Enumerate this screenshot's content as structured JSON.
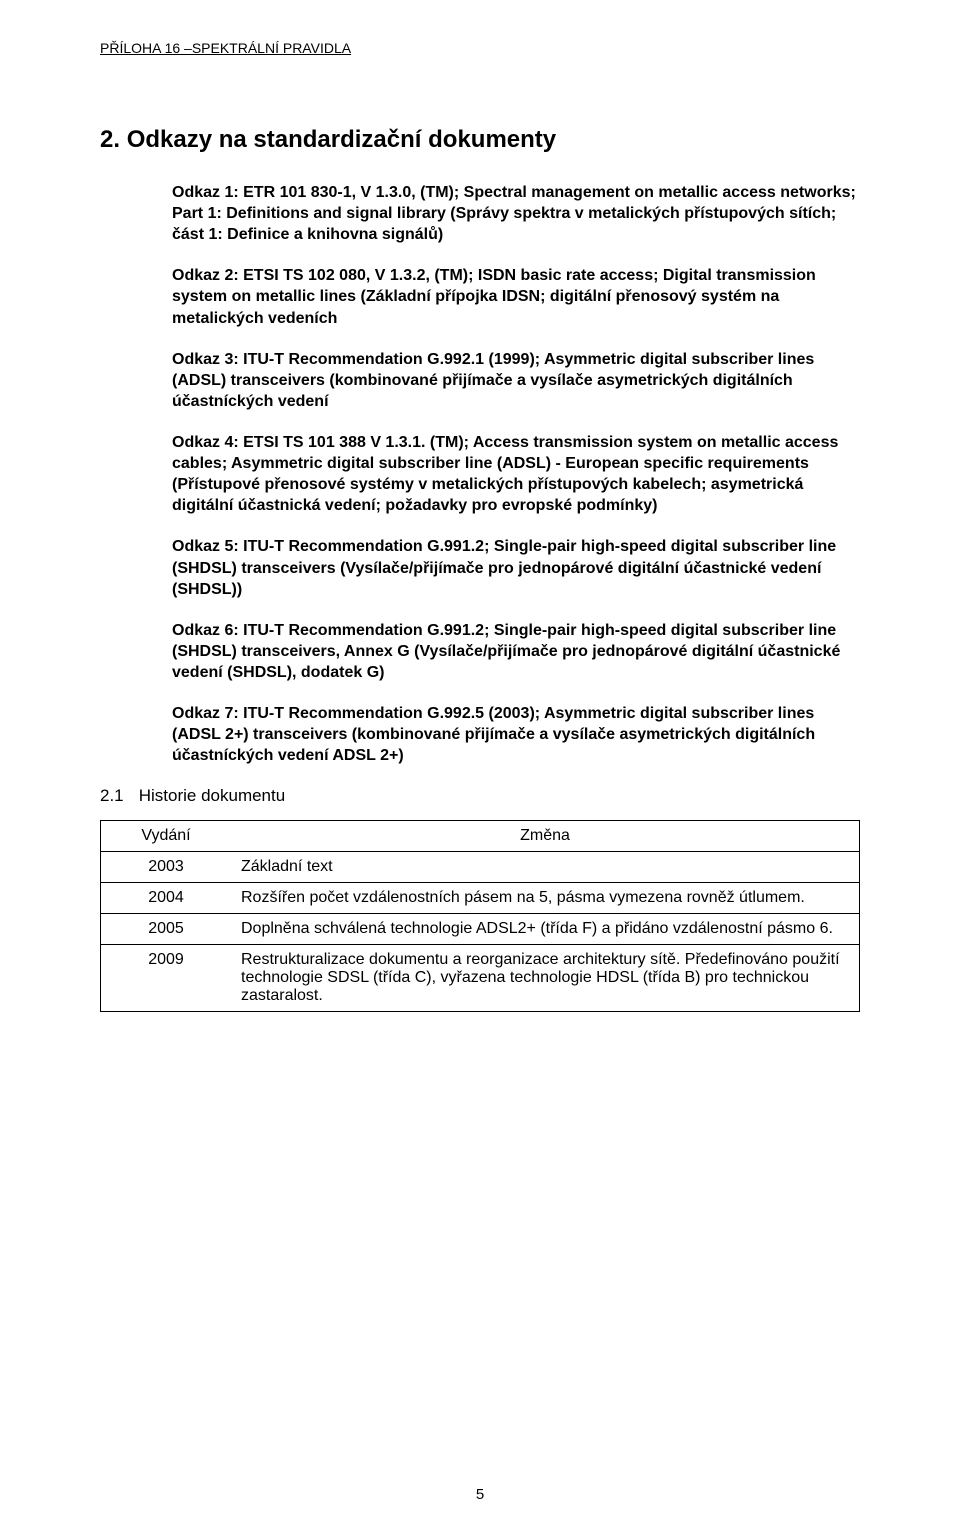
{
  "header": {
    "running": "PŘÍLOHA 16 –SPEKTRÁLNÍ PRAVIDLA"
  },
  "section": {
    "number": "2.",
    "title": "Odkazy na standardizační dokumenty"
  },
  "refs": {
    "r1": "Odkaz 1:  ETR 101 830-1, V 1.3.0, (TM); Spectral management on metallic access networks; Part 1: Definitions and signal library (Správy spektra v metalických přístupových sítích; část 1: Definice a knihovna signálů)",
    "r2": "Odkaz 2:  ETSI TS 102 080, V 1.3.2, (TM); ISDN basic rate access; Digital transmission system on metallic lines (Základní přípojka IDSN; digitální přenosový systém na metalických vedeních",
    "r3": "Odkaz 3:  ITU-T Recommendation G.992.1 (1999); Asymmetric digital subscriber lines (ADSL) transceivers (kombinované přijímače a vysílače asymetrických digitálních účastníckých vedení",
    "r4": "Odkaz 4:  ETSI TS 101 388 V 1.3.1. (TM); Access transmission system on metallic access cables; Asymmetric digital subscriber line (ADSL) - European specific requirements (Přístupové přenosové systémy v metalických přístupových kabelech; asymetrická digitální účastnická vedení; požadavky pro evropské podmínky)",
    "r5": "Odkaz 5:  ITU-T Recommendation G.991.2; Single-pair high-speed digital subscriber line (SHDSL) transceivers (Vysílače/přijímače pro jednopárové digitální účastnické vedení (SHDSL))",
    "r6": "Odkaz 6:  ITU-T Recommendation G.991.2; Single-pair high-speed digital subscriber line (SHDSL) transceivers, Annex G (Vysílače/přijímače pro jednopárové digitální účastnické vedení (SHDSL), dodatek G)",
    "r7": "Odkaz 7:  ITU-T Recommendation G.992.5 (2003); Asymmetric digital subscriber lines (ADSL 2+) transceivers (kombinované přijímače a vysílače asymetrických digitálních účastníckých vedení ADSL 2+)"
  },
  "subsection": {
    "number": "2.1",
    "title": "Historie dokumentu"
  },
  "table": {
    "head": {
      "c1": "Vydání",
      "c2": "Změna"
    },
    "rows": [
      {
        "year": "2003",
        "text": "Základní text"
      },
      {
        "year": "2004",
        "text": "Rozšířen počet vzdálenostních pásem na 5, pásma vymezena rovněž útlumem."
      },
      {
        "year": "2005",
        "text": "Doplněna schválená technologie ADSL2+ (třída F) a přidáno vzdálenostní pásmo 6."
      },
      {
        "year": "2009",
        "text": "Restrukturalizace dokumentu a reorganizace architektury sítě. Předefinováno použití technologie SDSL (třída C), vyřazena technologie HDSL (třída B) pro technickou zastaralost."
      }
    ]
  },
  "pageNumber": "5"
}
